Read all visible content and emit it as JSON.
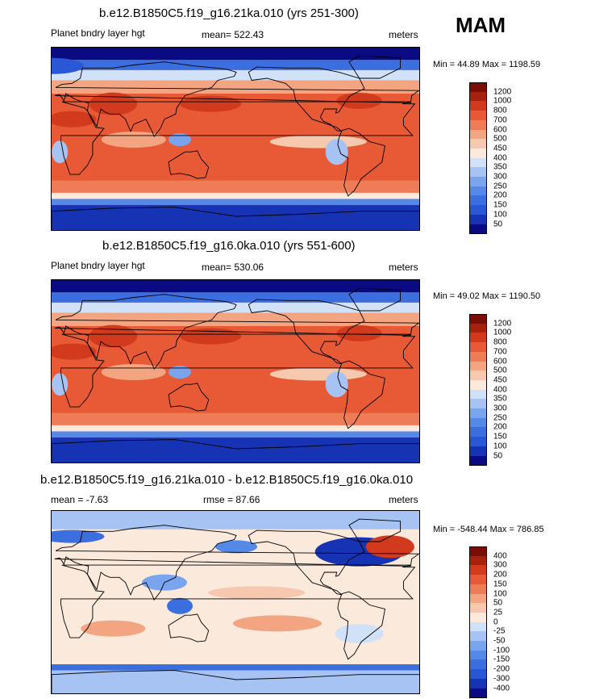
{
  "season": "MAM",
  "chart_data": [
    {
      "type": "heatmap",
      "title": "b.e12.B1850C5.f19_g16.21ka.010 (yrs 251-300)",
      "variable": "Planet bndry layer hgt",
      "mean_text": "mean= 522.43",
      "units": "meters",
      "minmax_text": "Min =  44.89 Max = 1198.59",
      "min": 44.89,
      "max": 1198.59,
      "mean": 522.43,
      "levels": [
        "50",
        "100",
        "150",
        "200",
        "250",
        "300",
        "350",
        "400",
        "450",
        "500",
        "600",
        "700",
        "800",
        "1000",
        "1200"
      ],
      "colors": [
        "#0a0a82",
        "#1633b3",
        "#2a57d6",
        "#3b6fe0",
        "#5589e8",
        "#7aa4ee",
        "#a6c3f3",
        "#d1e1f8",
        "#fbe9dc",
        "#f6c8ad",
        "#f3a582",
        "#ee7d57",
        "#e75a35",
        "#d23a1d",
        "#a8210f",
        "#7a0d06"
      ]
    },
    {
      "type": "heatmap",
      "title": "b.e12.B1850C5.f19_g16.0ka.010 (yrs 551-600)",
      "variable": "Planet bndry layer hgt",
      "mean_text": "mean= 530.06",
      "units": "meters",
      "minmax_text": "Min =  49.02 Max = 1190.50",
      "min": 49.02,
      "max": 1190.5,
      "mean": 530.06,
      "levels": [
        "50",
        "100",
        "150",
        "200",
        "250",
        "300",
        "350",
        "400",
        "450",
        "500",
        "600",
        "700",
        "800",
        "1000",
        "1200"
      ],
      "colors": [
        "#0a0a82",
        "#1633b3",
        "#2a57d6",
        "#3b6fe0",
        "#5589e8",
        "#7aa4ee",
        "#a6c3f3",
        "#d1e1f8",
        "#fbe9dc",
        "#f6c8ad",
        "#f3a582",
        "#ee7d57",
        "#e75a35",
        "#d23a1d",
        "#a8210f",
        "#7a0d06"
      ]
    },
    {
      "type": "heatmap",
      "title": "b.e12.B1850C5.f19_g16.21ka.010 - b.e12.B1850C5.f19_g16.0ka.010",
      "mean_text": "mean =  -7.63",
      "rmse_text": "rmse =  87.66",
      "units": "meters",
      "minmax_text": "Min = -548.44 Max = 786.85",
      "min": -548.44,
      "max": 786.85,
      "mean": -7.63,
      "rmse": 87.66,
      "levels": [
        "-400",
        "-300",
        "-200",
        "-150",
        "-100",
        "-50",
        "-25",
        "0",
        "25",
        "50",
        "100",
        "150",
        "200",
        "300",
        "400"
      ],
      "colors": [
        "#0a0a82",
        "#1633b3",
        "#2a57d6",
        "#3b6fe0",
        "#5589e8",
        "#7aa4ee",
        "#a6c3f3",
        "#d1e1f8",
        "#fbe9dc",
        "#f6c8ad",
        "#f3a582",
        "#ee7d57",
        "#e75a35",
        "#d23a1d",
        "#a8210f",
        "#7a0d06"
      ]
    }
  ]
}
